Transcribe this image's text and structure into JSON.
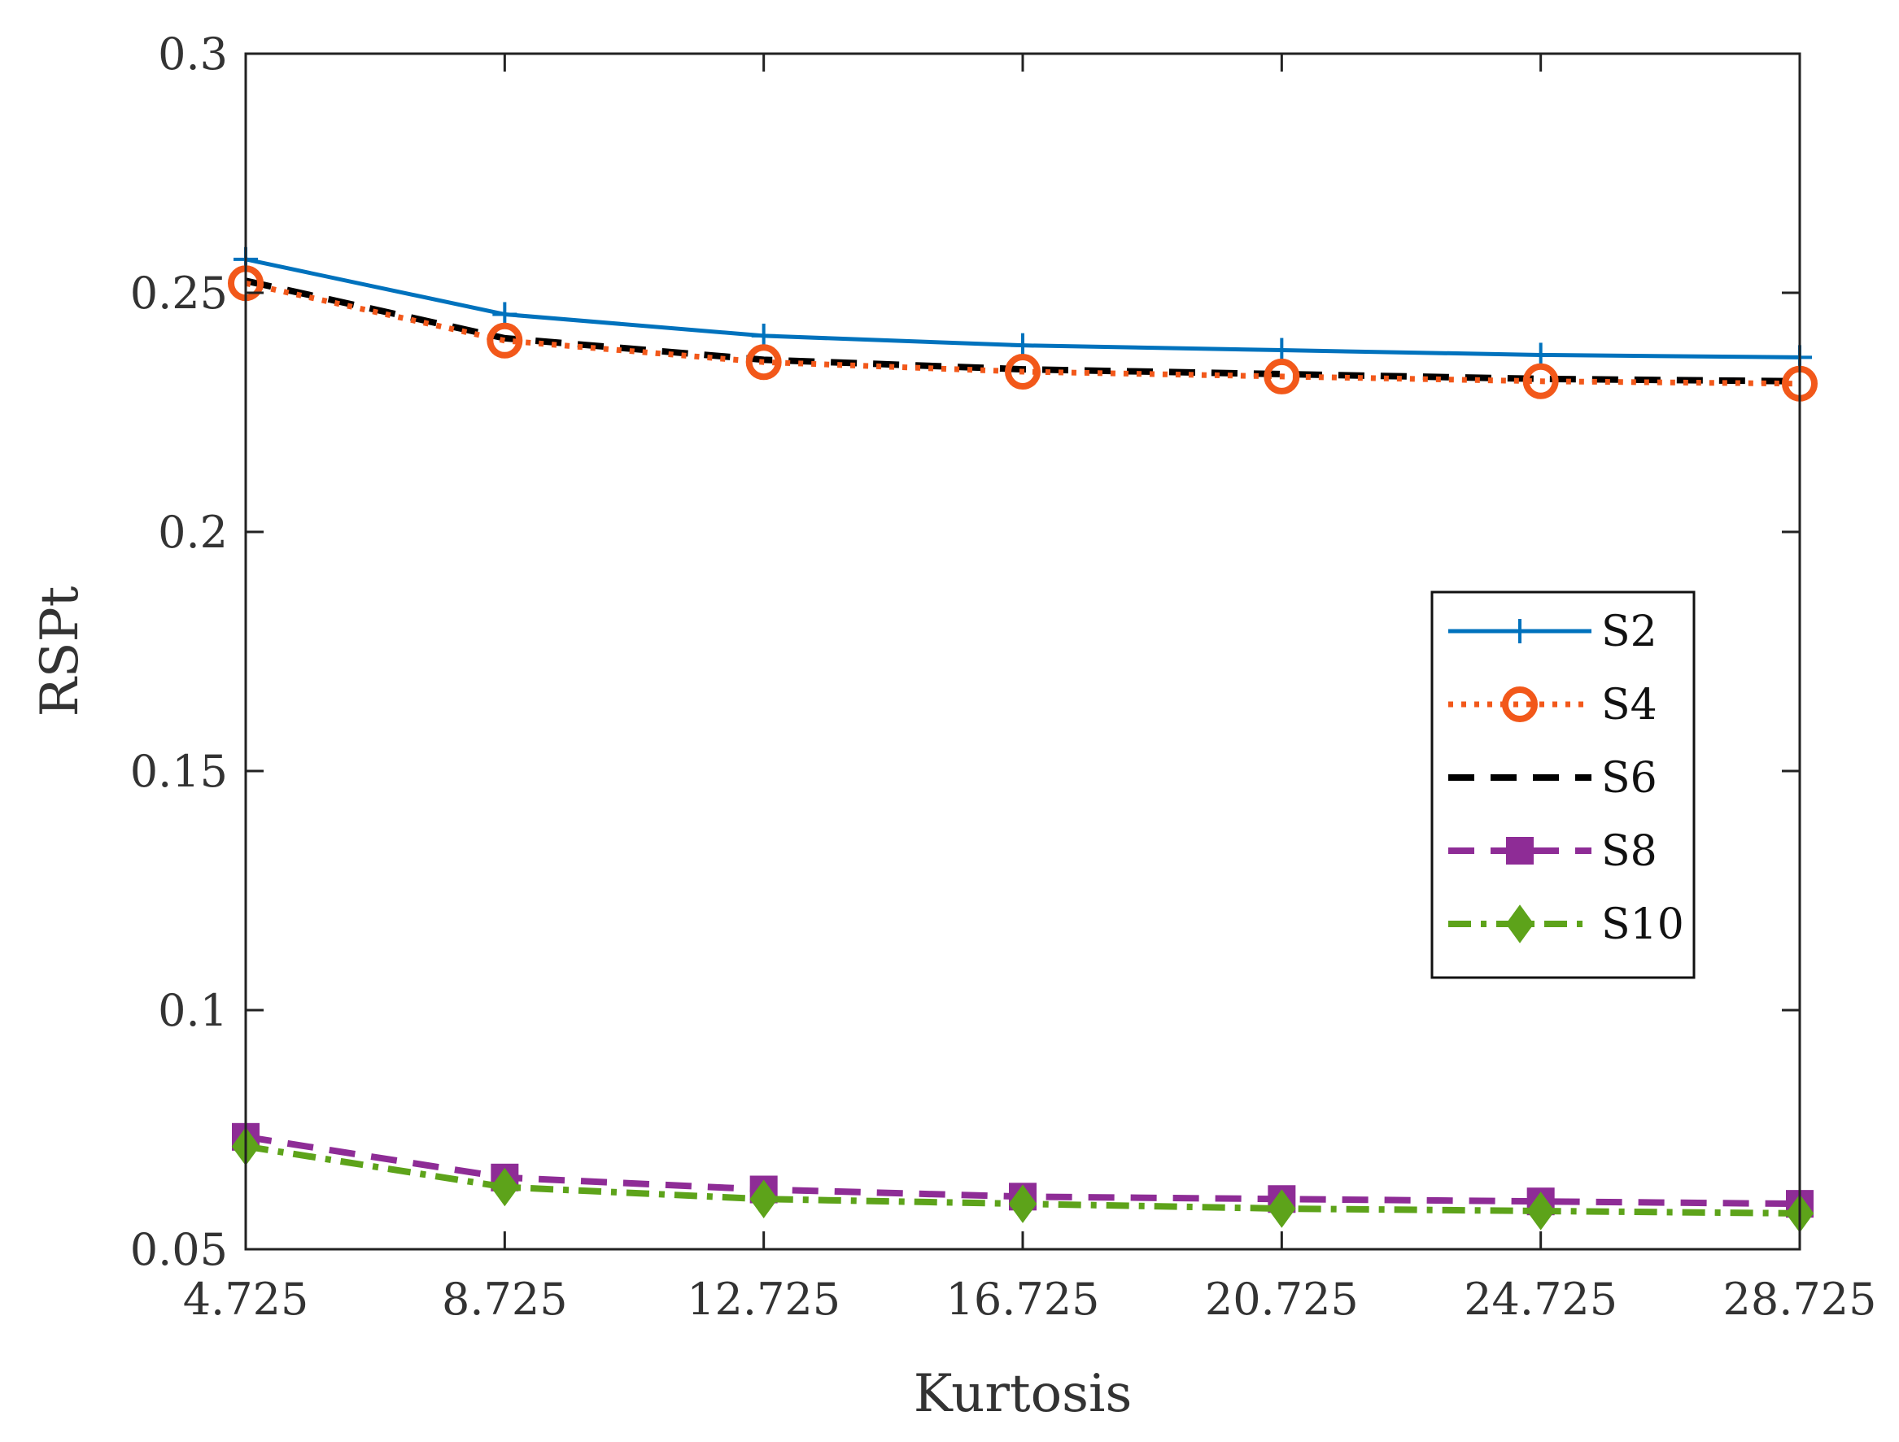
{
  "chart_data": {
    "type": "line",
    "xlabel": "Kurtosis",
    "ylabel": "RSPt",
    "x": [
      4.725,
      8.725,
      12.725,
      16.725,
      20.725,
      24.725,
      28.725
    ],
    "x_tick_labels": [
      "4.725",
      "8.725",
      "12.725",
      "16.725",
      "20.725",
      "24.725",
      "28.725"
    ],
    "xlim": [
      4.725,
      28.725
    ],
    "ylim": [
      0.05,
      0.3
    ],
    "y_ticks": [
      0.05,
      0.1,
      0.15,
      0.2,
      0.25,
      0.3
    ],
    "y_tick_labels": [
      "0.05",
      "0.1",
      "0.15",
      "0.2",
      "0.25",
      "0.3"
    ],
    "grid": false,
    "legend_position": "right",
    "series": [
      {
        "name": "S2",
        "color": "#0072BD",
        "line_style": "solid",
        "marker": "plus",
        "values": [
          0.257,
          0.2455,
          0.241,
          0.239,
          0.238,
          0.237,
          0.2365
        ]
      },
      {
        "name": "S4",
        "color": "#F2581A",
        "line_style": "dotted",
        "marker": "circle",
        "values": [
          0.252,
          0.24,
          0.2355,
          0.2335,
          0.2325,
          0.2315,
          0.231
        ]
      },
      {
        "name": "S6",
        "color": "#000000",
        "line_style": "dashed",
        "marker": "none",
        "values": [
          0.2525,
          0.2405,
          0.236,
          0.234,
          0.233,
          0.232,
          0.2315
        ]
      },
      {
        "name": "S8",
        "color": "#8E2C96",
        "line_style": "dashed",
        "marker": "square",
        "values": [
          0.0735,
          0.065,
          0.0625,
          0.061,
          0.0605,
          0.06,
          0.0595
        ]
      },
      {
        "name": "S10",
        "color": "#5DA31A",
        "line_style": "dashdot",
        "marker": "diamond",
        "values": [
          0.0715,
          0.063,
          0.0605,
          0.0595,
          0.0585,
          0.058,
          0.0575
        ]
      }
    ]
  }
}
